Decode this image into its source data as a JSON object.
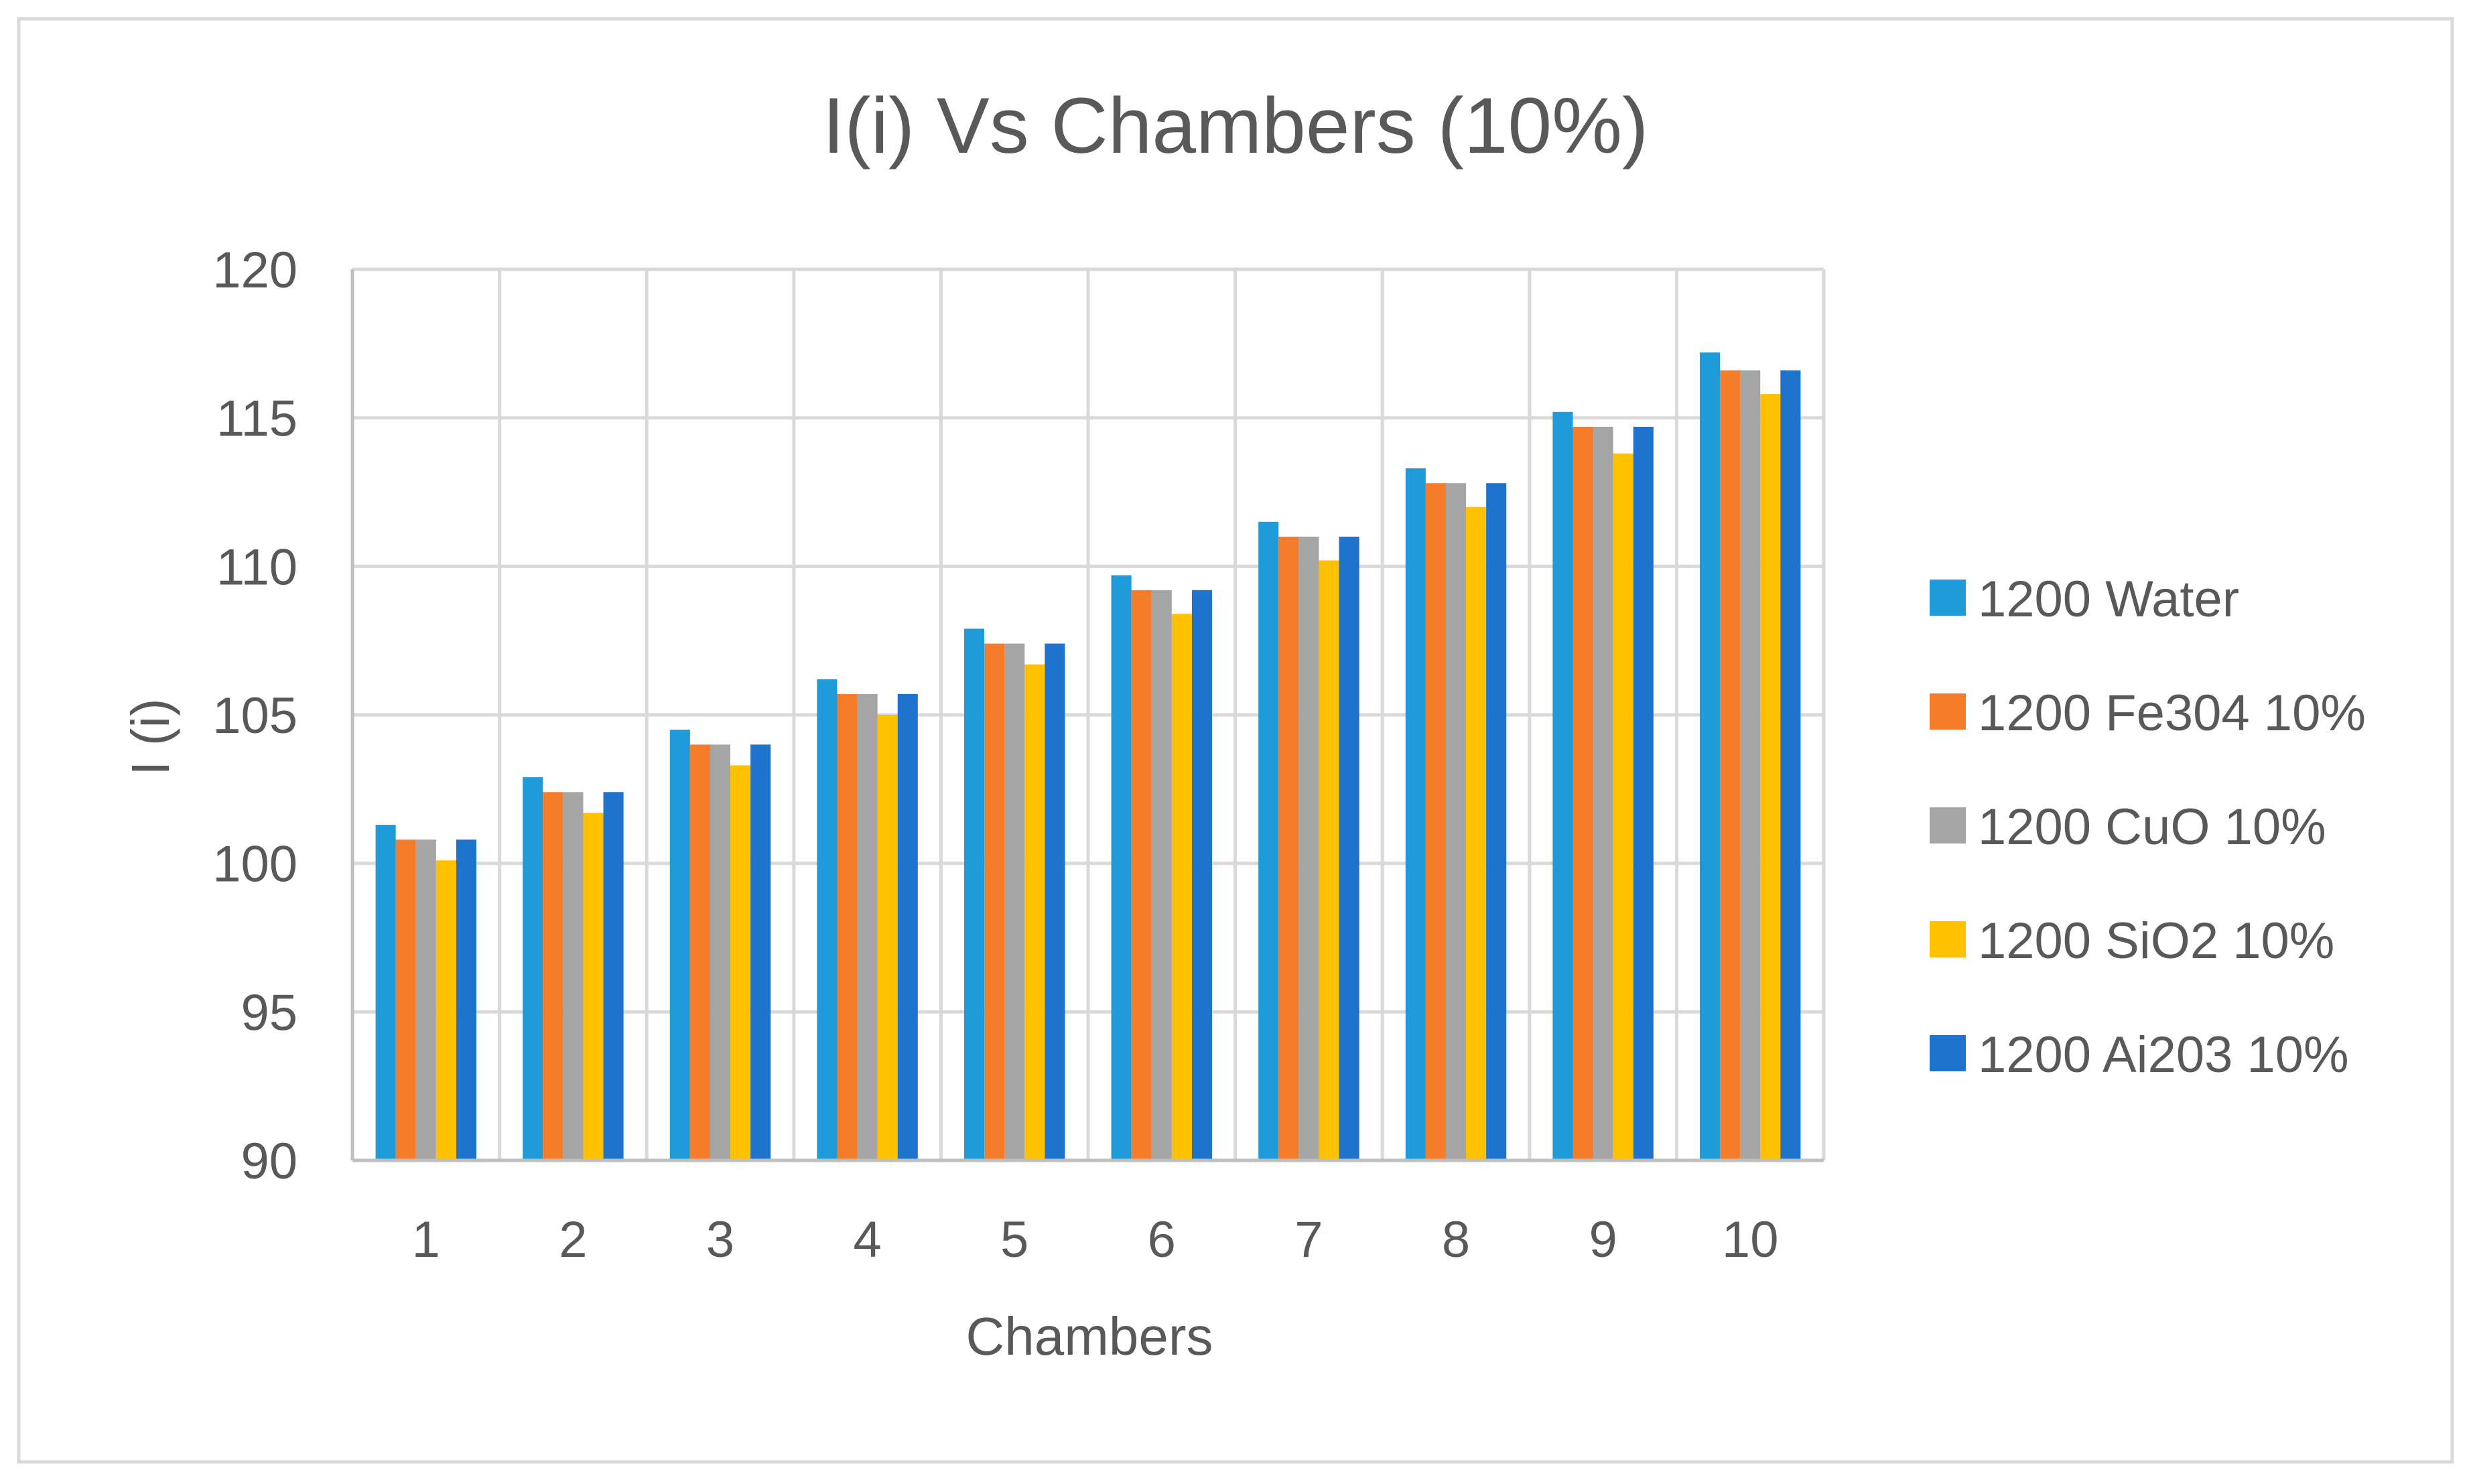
{
  "chart_data": {
    "type": "bar",
    "title": "I(i) Vs Chambers (10%)",
    "xlabel": "Chambers",
    "ylabel": "I (i)",
    "ylim": [
      90,
      120
    ],
    "yticks": [
      90,
      95,
      100,
      105,
      110,
      115,
      120
    ],
    "grid": true,
    "legend_position": "right",
    "categories": [
      "1",
      "2",
      "3",
      "4",
      "5",
      "6",
      "7",
      "8",
      "9",
      "10"
    ],
    "series": [
      {
        "name": "1200 Water",
        "color": "#1F9BDA",
        "values": [
          101.3,
          102.9,
          104.5,
          106.2,
          107.9,
          109.7,
          111.5,
          113.3,
          115.2,
          117.2
        ]
      },
      {
        "name": "1200 Fe304 10%",
        "color": "#F57C2A",
        "values": [
          100.8,
          102.4,
          104.0,
          105.7,
          107.4,
          109.2,
          111.0,
          112.8,
          114.7,
          116.6
        ]
      },
      {
        "name": "1200 CuO 10%",
        "color": "#A5A5A5",
        "values": [
          100.8,
          102.4,
          104.0,
          105.7,
          107.4,
          109.2,
          111.0,
          112.8,
          114.7,
          116.6
        ]
      },
      {
        "name": "1200 SiO2 10%",
        "color": "#FFC000",
        "values": [
          100.1,
          101.7,
          103.3,
          105.0,
          106.7,
          108.4,
          110.2,
          112.0,
          113.8,
          115.8
        ]
      },
      {
        "name": "1200 Ai203 10%",
        "color": "#1E73CC",
        "values": [
          100.8,
          102.4,
          104.0,
          105.7,
          107.4,
          109.2,
          111.0,
          112.8,
          114.7,
          116.6
        ]
      }
    ]
  }
}
